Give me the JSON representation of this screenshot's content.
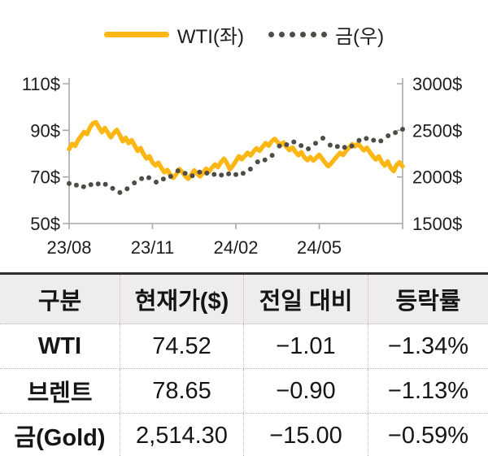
{
  "legend": {
    "items": [
      {
        "label": "WTI(좌)",
        "marker": "line"
      },
      {
        "label": "금(우)",
        "marker": "dots"
      }
    ]
  },
  "colors": {
    "wti_line": "#FDB714",
    "gold_dots": "#4F4B46",
    "axis": "#A9A9A9",
    "text": "#1C1C1C",
    "table_header_bg": "#EFEDEB",
    "table_top_border": "#2E2D2B",
    "table_dotted_border": "#BEB9B2"
  },
  "chart_data": {
    "type": "line",
    "title": "",
    "grid": false,
    "legend_position": "top",
    "x_tick_labels": [
      "23/08",
      "23/11",
      "24/02",
      "24/05"
    ],
    "left_axis": {
      "tick_labels": [
        "110$",
        "90$",
        "70$",
        "50$"
      ],
      "min": 50,
      "max": 110
    },
    "right_axis": {
      "tick_labels": [
        "3000$",
        "2500$",
        "2000$",
        "1500$"
      ],
      "min": 1500,
      "max": 3000
    },
    "series": [
      {
        "name": "WTI(좌)",
        "axis": "left",
        "style": "line",
        "color": "#FDB714",
        "values": [
          82.0,
          84.2,
          83.3,
          85.8,
          87.5,
          89.3,
          88.4,
          91.2,
          93.0,
          93.5,
          91.3,
          89.2,
          91.0,
          89.0,
          87.0,
          88.8,
          90.2,
          88.0,
          85.3,
          86.8,
          84.5,
          85.8,
          83.5,
          81.2,
          82.4,
          79.8,
          77.9,
          78.9,
          76.2,
          74.9,
          76.1,
          73.8,
          72.0,
          73.0,
          70.9,
          69.6,
          71.2,
          73.4,
          72.0,
          70.3,
          69.2,
          71.0,
          72.8,
          71.4,
          70.2,
          71.8,
          73.5,
          72.3,
          74.0,
          75.4,
          74.2,
          76.3,
          77.8,
          75.9,
          73.3,
          74.8,
          76.8,
          78.9,
          77.6,
          79.0,
          80.4,
          79.2,
          81.0,
          82.3,
          81.2,
          83.0,
          84.5,
          83.4,
          85.2,
          86.3,
          85.0,
          83.6,
          84.8,
          82.9,
          81.5,
          82.6,
          80.8,
          79.3,
          80.6,
          78.4,
          77.2,
          78.5,
          77.0,
          78.2,
          79.5,
          77.8,
          76.1,
          74.6,
          75.8,
          77.4,
          78.9,
          80.3,
          79.4,
          81.2,
          82.6,
          84.0,
          83.1,
          84.3,
          82.8,
          81.4,
          82.5,
          80.6,
          78.9,
          77.5,
          78.8,
          76.4,
          74.9,
          76.6,
          73.9,
          72.5,
          75.2,
          76.3,
          74.52
        ]
      },
      {
        "name": "금(우)",
        "axis": "right",
        "style": "dots",
        "color": "#4F4B46",
        "values": [
          1930,
          1912,
          1895,
          1918,
          1926,
          1920,
          1878,
          1832,
          1872,
          1936,
          1982,
          1992,
          1945,
          1978,
          2006,
          2066,
          2038,
          2012,
          2052,
          2041,
          2028,
          2020,
          2033,
          2026,
          2038,
          2084,
          2162,
          2182,
          2232,
          2332,
          2346,
          2376,
          2336,
          2302,
          2362,
          2416,
          2342,
          2326,
          2318,
          2332,
          2392,
          2412,
          2394,
          2386,
          2442,
          2476,
          2512
        ]
      }
    ]
  },
  "table": {
    "headers": [
      "구분",
      "현재가($)",
      "전일 대비",
      "등락률"
    ],
    "rows": [
      [
        "WTI",
        "74.52",
        "−1.01",
        "−1.34%"
      ],
      [
        "브렌트",
        "78.65",
        "−0.90",
        "−1.13%"
      ],
      [
        "금(Gold)",
        "2,514.30",
        "−15.00",
        "−0.59%"
      ]
    ]
  }
}
